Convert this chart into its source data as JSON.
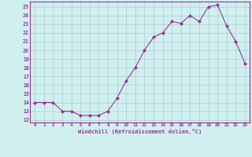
{
  "x": [
    0,
    1,
    2,
    3,
    4,
    5,
    6,
    7,
    8,
    9,
    10,
    11,
    12,
    13,
    14,
    15,
    16,
    17,
    18,
    19,
    20,
    21,
    22,
    23
  ],
  "y": [
    14,
    14,
    14,
    13,
    13,
    12.5,
    12.5,
    12.5,
    13,
    14.5,
    16.5,
    18,
    20,
    21.5,
    22,
    23.3,
    23.1,
    24,
    23.3,
    25,
    25.2,
    22.8,
    21,
    18.5
  ],
  "line_color": "#993399",
  "marker_color": "#993399",
  "bg_color": "#d0f0f0",
  "grid_color": "#b0c8c8",
  "xlabel": "Windchill (Refroidissement éolien,°C)",
  "xlim": [
    -0.5,
    23.5
  ],
  "ylim": [
    11.7,
    25.6
  ],
  "yticks": [
    12,
    13,
    14,
    15,
    16,
    17,
    18,
    19,
    20,
    21,
    22,
    23,
    24,
    25
  ],
  "xticks": [
    0,
    1,
    2,
    3,
    4,
    5,
    6,
    7,
    8,
    9,
    10,
    11,
    12,
    13,
    14,
    15,
    16,
    17,
    18,
    19,
    20,
    21,
    22,
    23
  ],
  "spine_color": "#993399",
  "tick_color": "#993399"
}
